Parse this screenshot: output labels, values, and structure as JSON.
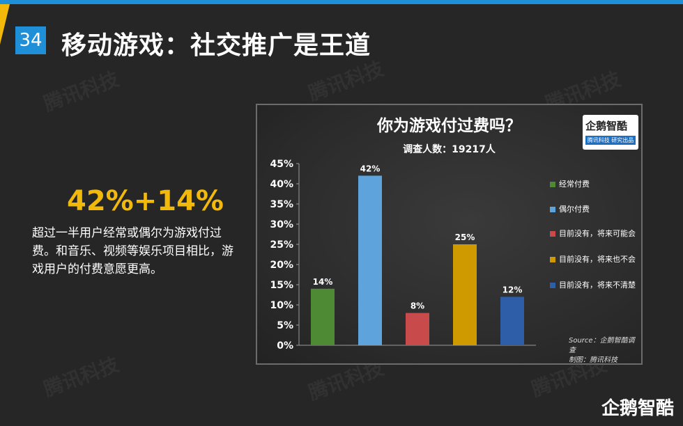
{
  "header": {
    "page_number": "34",
    "title": "移动游戏：社交推广是王道"
  },
  "watermark": "腾讯科技",
  "left": {
    "big_stat": "42%+14%",
    "description": "超过一半用户经常或偶尔为游戏付过费。和音乐、视频等娱乐项目相比，游戏用户的付费意愿更高。"
  },
  "chart_data": {
    "type": "bar",
    "title": "你为游戏付过费吗？",
    "subtitle": "调查人数：19217人",
    "categories": [
      "经常付费",
      "偶尔付费",
      "目前没有，将来可能会",
      "目前没有，将来也不会",
      "目前没有，将来不清楚"
    ],
    "values": [
      14,
      42,
      8,
      25,
      12
    ],
    "value_labels": [
      "14%",
      "42%",
      "8%",
      "25%",
      "12%"
    ],
    "colors": [
      "#4e8a33",
      "#5ea3dc",
      "#c84a4a",
      "#cf9a00",
      "#2e5ea8"
    ],
    "ylim": [
      0,
      45
    ],
    "yticks": [
      "0%",
      "5%",
      "10%",
      "15%",
      "20%",
      "25%",
      "30%",
      "35%",
      "40%",
      "45%"
    ],
    "legend_position": "right",
    "grid": false,
    "logo": {
      "main": "企鹅智酷",
      "sub": "腾讯科技 研究出品"
    },
    "source_lines": [
      "Source：企鹅智酷调查",
      "制图：腾讯科技"
    ]
  },
  "footer": {
    "brand": "企鹅智酷"
  }
}
